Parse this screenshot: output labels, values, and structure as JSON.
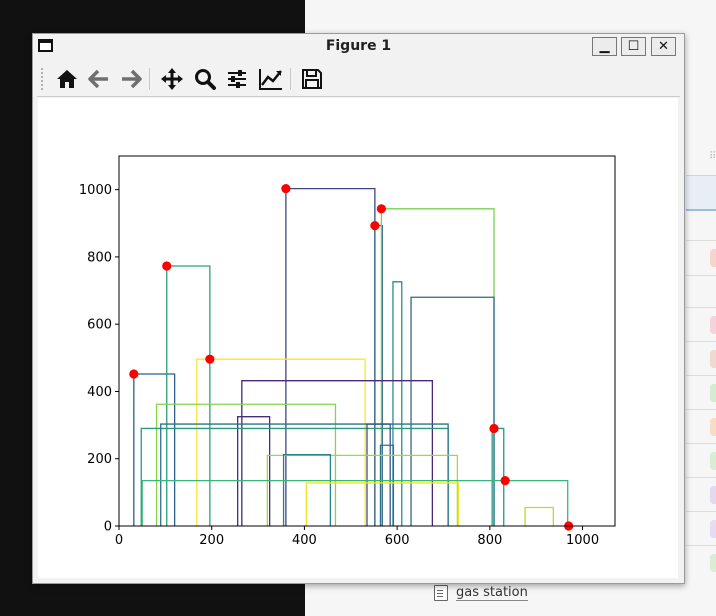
{
  "window": {
    "title": "Figure 1"
  },
  "window_controls": {
    "minimize": "▁",
    "maximize": "☐",
    "close": "✕"
  },
  "toolbar": {
    "tools": [
      {
        "icon": "home-icon"
      },
      {
        "icon": "back-arrow-icon"
      },
      {
        "icon": "forward-arrow-icon"
      },
      {
        "icon": "pan-move-icon"
      },
      {
        "icon": "zoom-magnifier-icon"
      },
      {
        "icon": "configure-subplots-icon"
      },
      {
        "icon": "edit-axis-line-icon"
      },
      {
        "icon": "save-floppy-icon"
      }
    ]
  },
  "background": {
    "footer_label": "gas station"
  },
  "chart_data": {
    "type": "rectangles-with-points",
    "xlim": [
      0,
      1070
    ],
    "ylim": [
      0,
      1100
    ],
    "xticks": [
      0,
      200,
      400,
      600,
      800,
      1000
    ],
    "yticks": [
      0,
      200,
      400,
      600,
      800,
      1000
    ],
    "grid": false,
    "title": "",
    "xlabel": "",
    "ylabel": "",
    "rectangles": [
      {
        "x0": 32,
        "x1": 120,
        "y0": 0,
        "y1": 452,
        "color": "#2a5f8e"
      },
      {
        "x0": 103,
        "x1": 196,
        "y0": 0,
        "y1": 773,
        "color": "#2aa078"
      },
      {
        "x0": 360,
        "x1": 552,
        "y0": 0,
        "y1": 1003,
        "color": "#414487"
      },
      {
        "x0": 552,
        "x1": 568,
        "y0": 0,
        "y1": 893,
        "color": "#3a6b8c"
      },
      {
        "x0": 566,
        "x1": 809,
        "y0": 0,
        "y1": 943,
        "color": "#7ad151"
      },
      {
        "x0": 591,
        "x1": 610,
        "y0": 0,
        "y1": 726,
        "color": "#2a8e8c"
      },
      {
        "x0": 630,
        "x1": 809,
        "y0": 0,
        "y1": 680,
        "color": "#31688e"
      },
      {
        "x0": 168,
        "x1": 531,
        "y0": 0,
        "y1": 496,
        "color": "#fde725"
      },
      {
        "x0": 265,
        "x1": 676,
        "y0": 0,
        "y1": 432,
        "color": "#482878"
      },
      {
        "x0": 81,
        "x1": 467,
        "y0": 0,
        "y1": 362,
        "color": "#86d549"
      },
      {
        "x0": 256,
        "x1": 325,
        "y0": 0,
        "y1": 325,
        "color": "#472d7b"
      },
      {
        "x0": 48,
        "x1": 710,
        "y0": 0,
        "y1": 290,
        "color": "#2a9b7a"
      },
      {
        "x0": 90,
        "x1": 710,
        "y0": 0,
        "y1": 303,
        "color": "#2c728e"
      },
      {
        "x0": 805,
        "x1": 830,
        "y0": 0,
        "y1": 290,
        "color": "#1f9e89"
      },
      {
        "x0": 535,
        "x1": 585,
        "y0": 0,
        "y1": 303,
        "color": "#3b528b"
      },
      {
        "x0": 564,
        "x1": 592,
        "y0": 0,
        "y1": 240,
        "color": "#2d708e"
      },
      {
        "x0": 320,
        "x1": 730,
        "y0": 0,
        "y1": 210,
        "color": "#a0da39"
      },
      {
        "x0": 355,
        "x1": 456,
        "y0": 0,
        "y1": 212,
        "color": "#26828e"
      },
      {
        "x0": 404,
        "x1": 732,
        "y0": 0,
        "y1": 128,
        "color": "#f0e51f"
      },
      {
        "x0": 50,
        "x1": 968,
        "y0": 0,
        "y1": 135,
        "color": "#35b779"
      },
      {
        "x0": 876,
        "x1": 937,
        "y0": 0,
        "y1": 55,
        "color": "#b5de2b"
      }
    ],
    "points": [
      {
        "x": 32,
        "y": 452
      },
      {
        "x": 103,
        "y": 773
      },
      {
        "x": 196,
        "y": 496
      },
      {
        "x": 360,
        "y": 1003
      },
      {
        "x": 552,
        "y": 893
      },
      {
        "x": 566,
        "y": 943
      },
      {
        "x": 809,
        "y": 290
      },
      {
        "x": 833,
        "y": 135
      },
      {
        "x": 970,
        "y": 0
      }
    ],
    "point_color": "#ff0000"
  }
}
